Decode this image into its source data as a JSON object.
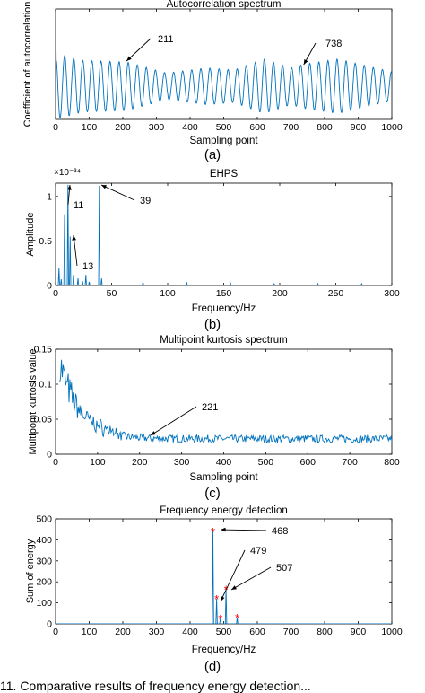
{
  "colors": {
    "line": "#0072bd",
    "marker": "#ff0000",
    "axis": "#000000"
  },
  "panels": [
    {
      "caption": "(a)",
      "chart_data": {
        "type": "line",
        "title": "Autocorrelation spectrum",
        "xlabel": "Sampling point",
        "ylabel": "Coefficient of autocorrelation",
        "xlim": [
          0,
          1000
        ],
        "ylim": [
          -0.5,
          1
        ],
        "xticks": [
          "0",
          "100",
          "200",
          "300",
          "400",
          "500",
          "600",
          "700",
          "800",
          "900",
          "1000"
        ],
        "yticks": [],
        "signal": {
          "kind": "oscillation",
          "period": 27,
          "start_value": 1,
          "envelope": [
            [
              0,
              0.45
            ],
            [
              80,
              0.35
            ],
            [
              211,
              0.33
            ],
            [
              330,
              0.18
            ],
            [
              450,
              0.25
            ],
            [
              530,
              0.22
            ],
            [
              620,
              0.37
            ],
            [
              700,
              0.25
            ],
            [
              738,
              0.3
            ],
            [
              840,
              0.37
            ],
            [
              950,
              0.25
            ],
            [
              1000,
              0.2
            ]
          ]
        },
        "annotations": [
          {
            "text": "211",
            "x": 211
          },
          {
            "text": "738",
            "x": 738
          }
        ]
      }
    },
    {
      "caption": "(b)",
      "chart_data": {
        "type": "line",
        "title": "EHPS",
        "xlabel": "Frequency/Hz",
        "ylabel": "Amplitude",
        "xlim": [
          0,
          300
        ],
        "ylim": [
          0,
          1.15
        ],
        "exponent_label": "×10⁻³⁴",
        "xticks": [
          "0",
          "50",
          "100",
          "150",
          "200",
          "250",
          "300"
        ],
        "yticks": [
          "0",
          "0.5",
          "1"
        ],
        "spikes": [
          [
            3,
            0.2
          ],
          [
            5,
            0.07
          ],
          [
            8,
            0.8
          ],
          [
            11,
            1.13
          ],
          [
            13,
            0.55
          ],
          [
            16,
            0.12
          ],
          [
            20,
            0.08
          ],
          [
            24,
            0.05
          ],
          [
            27,
            0.12
          ],
          [
            30,
            0.04
          ],
          [
            39,
            1.12
          ],
          [
            41,
            0.08
          ],
          [
            78,
            0.04
          ],
          [
            117,
            0.03
          ],
          [
            156,
            0.03
          ],
          [
            195,
            0.02
          ],
          [
            234,
            0.02
          ],
          [
            273,
            0.02
          ]
        ],
        "annotations": [
          {
            "text": "11",
            "x": 11
          },
          {
            "text": "13",
            "x": 13
          },
          {
            "text": "39",
            "x": 39
          }
        ]
      }
    },
    {
      "caption": "(c)",
      "chart_data": {
        "type": "line",
        "title": "Multipoint kurtosis spectrum",
        "xlabel": "Sampling point",
        "ylabel": "Multipomt kurtosis value",
        "xlim": [
          0,
          800
        ],
        "ylim": [
          0,
          0.15
        ],
        "xticks": [
          "0",
          "100",
          "200",
          "300",
          "400",
          "500",
          "600",
          "700",
          "800"
        ],
        "yticks": [
          "0",
          "0.05",
          "0.1",
          "0.15"
        ],
        "signal": {
          "kind": "noise-decay",
          "peak": 0.125,
          "floor": 0.022,
          "decay": 45
        },
        "annotations": [
          {
            "text": "221",
            "x": 221
          }
        ]
      }
    },
    {
      "caption": "(d)",
      "chart_data": {
        "type": "line",
        "title": "Frequency energy detection",
        "xlabel": "Frequency/Hz",
        "ylabel": "Sum of energy",
        "xlim": [
          0,
          1000
        ],
        "ylim": [
          0,
          500
        ],
        "xticks": [
          "0",
          "100",
          "200",
          "300",
          "400",
          "500",
          "600",
          "700",
          "800",
          "900",
          "1000"
        ],
        "yticks": [
          "0",
          "100",
          "200",
          "300",
          "400",
          "500"
        ],
        "spikes": [
          [
            468,
            440
          ],
          [
            479,
            120
          ],
          [
            490,
            25
          ],
          [
            507,
            165
          ],
          [
            540,
            30
          ]
        ],
        "markers": [
          [
            468,
            440
          ],
          [
            479,
            120
          ],
          [
            490,
            25
          ],
          [
            507,
            165
          ],
          [
            540,
            30
          ]
        ],
        "annotations": [
          {
            "text": "468",
            "x": 468
          },
          {
            "text": "479",
            "x": 479
          },
          {
            "text": "507",
            "x": 507
          }
        ]
      }
    }
  ],
  "footer_text": "11.   Comparative results of frequency energy detection..."
}
